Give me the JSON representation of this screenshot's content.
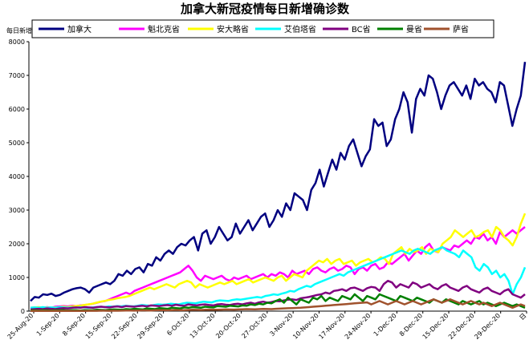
{
  "chart_data": {
    "type": "line",
    "title": "加拿大新冠疫情每日新增确诊数",
    "ylabel": "每日新增确诊",
    "ylim": [
      0,
      8000
    ],
    "yticks": [
      0,
      1000,
      2000,
      3000,
      4000,
      5000,
      6000,
      7000,
      8000
    ],
    "x_tick_labels": [
      "25-Aug-20",
      "1-Sep-20",
      "8-Sep-20",
      "15-Sep-20",
      "22-Sep-20",
      "29-Sep-20",
      "6-Oct-20",
      "13-Oct-20",
      "20-Oct-20",
      "27-Oct-20",
      "3-Nov-20",
      "10-Nov-20",
      "17-Nov-20",
      "24-Nov-20",
      "1-Dec-20",
      "8-Dec-20",
      "15-Dec-20",
      "22-Dec-20",
      "29-Dec-20",
      "日"
    ],
    "legend_position": "top",
    "grid": false,
    "series": [
      {
        "name": "加拿大",
        "color": "#000080",
        "values": [
          300,
          420,
          400,
          500,
          480,
          520,
          450,
          480,
          550,
          600,
          650,
          680,
          700,
          650,
          550,
          700,
          750,
          800,
          850,
          800,
          900,
          1100,
          1050,
          1200,
          1100,
          1250,
          1300,
          1150,
          1400,
          1350,
          1600,
          1500,
          1700,
          1800,
          1700,
          1900,
          2000,
          1950,
          2100,
          2200,
          1800,
          2300,
          2400,
          2000,
          2200,
          2500,
          2300,
          2100,
          2200,
          2600,
          2300,
          2500,
          2700,
          2400,
          2600,
          2800,
          2900,
          2500,
          2700,
          3000,
          2800,
          3200,
          3000,
          3500,
          3400,
          3300,
          3000,
          3600,
          3800,
          4200,
          3700,
          4100,
          4500,
          4200,
          4700,
          4500,
          4900,
          5100,
          4700,
          4300,
          4600,
          4800,
          5700,
          5500,
          5600,
          4900,
          5100,
          5700,
          6000,
          6500,
          6200,
          5300,
          6300,
          6600,
          6400,
          7000,
          6900,
          6500,
          6000,
          6400,
          6700,
          6800,
          6600,
          6400,
          6700,
          6300,
          6900,
          6700,
          6800,
          6600,
          6500,
          6200,
          6800,
          6700,
          6100,
          5500,
          6000,
          6400,
          7400
        ]
      },
      {
        "name": "魁北克省",
        "color": "#ff00ff",
        "values": [
          100,
          90,
          110,
          100,
          120,
          100,
          130,
          140,
          150,
          140,
          160,
          150,
          170,
          180,
          200,
          220,
          250,
          280,
          300,
          350,
          400,
          450,
          500,
          550,
          500,
          600,
          650,
          700,
          750,
          800,
          850,
          900,
          950,
          1000,
          1050,
          1100,
          1150,
          1250,
          1350,
          1200,
          1000,
          900,
          1050,
          1000,
          950,
          1000,
          1050,
          950,
          900,
          1000,
          950,
          1000,
          1050,
          950,
          1000,
          1050,
          1100,
          1000,
          1100,
          1050,
          1150,
          1100,
          1000,
          1200,
          1100,
          1150,
          1200,
          1100,
          1250,
          1300,
          1200,
          1150,
          1250,
          1300,
          1200,
          1250,
          1350,
          1300,
          1100,
          1250,
          1300,
          1200,
          1350,
          1400,
          1250,
          1300,
          1450,
          1400,
          1500,
          1600,
          1700,
          1500,
          1650,
          1800,
          1700,
          1900,
          2000,
          1800,
          1750,
          1900,
          1850,
          1800,
          1950,
          1900,
          2000,
          2100,
          2000,
          2200,
          2150,
          2300,
          2100,
          2200,
          2000,
          2350,
          2200,
          2300,
          2400,
          2300,
          2400,
          2500
        ]
      },
      {
        "name": "安大略省",
        "color": "#ffff00",
        "values": [
          100,
          110,
          120,
          100,
          110,
          100,
          110,
          120,
          130,
          120,
          140,
          150,
          160,
          180,
          200,
          220,
          250,
          280,
          300,
          330,
          350,
          380,
          400,
          420,
          450,
          500,
          550,
          600,
          650,
          700,
          650,
          700,
          750,
          800,
          750,
          700,
          800,
          850,
          900,
          850,
          700,
          800,
          750,
          700,
          750,
          800,
          850,
          800,
          850,
          900,
          800,
          850,
          900,
          950,
          850,
          900,
          950,
          1000,
          950,
          900,
          1000,
          1050,
          900,
          1000,
          1100,
          1050,
          1000,
          1200,
          1300,
          1400,
          1500,
          1450,
          1550,
          1400,
          1500,
          1550,
          1400,
          1450,
          1500,
          1350,
          1450,
          1500,
          1550,
          1450,
          1500,
          1600,
          1550,
          1400,
          1700,
          1800,
          1900,
          1700,
          1850,
          1750,
          1800,
          1900,
          1700,
          1850,
          1800,
          1750,
          2000,
          2100,
          2200,
          2400,
          2300,
          2200,
          2300,
          2400,
          2200,
          2250,
          2350,
          2400,
          2200,
          2500,
          2400,
          2200,
          2100,
          1950,
          2200,
          2600,
          2900
        ]
      },
      {
        "name": "艾伯塔省",
        "color": "#00ffff",
        "values": [
          100,
          110,
          100,
          120,
          100,
          110,
          100,
          120,
          110,
          100,
          110,
          100,
          120,
          110,
          100,
          110,
          120,
          130,
          120,
          140,
          130,
          150,
          140,
          160,
          150,
          140,
          160,
          180,
          170,
          160,
          180,
          200,
          190,
          200,
          220,
          210,
          200,
          230,
          250,
          240,
          230,
          260,
          280,
          270,
          260,
          300,
          320,
          310,
          300,
          330,
          350,
          340,
          360,
          380,
          400,
          420,
          400,
          450,
          470,
          500,
          480,
          520,
          550,
          600,
          580,
          650,
          700,
          750,
          720,
          800,
          850,
          900,
          950,
          1000,
          1050,
          1100,
          1050,
          1150,
          1200,
          1250,
          1300,
          1350,
          1400,
          1450,
          1500,
          1550,
          1600,
          1650,
          1700,
          1750,
          1800,
          1750,
          1700,
          1800,
          1850,
          1800,
          1750,
          1700,
          1800,
          1850,
          1900,
          1800,
          1750,
          1700,
          1600,
          1800,
          1700,
          1600,
          1300,
          1200,
          1400,
          1300,
          1100,
          1200,
          1000,
          1100,
          900,
          500,
          800,
          1000,
          1300
        ]
      },
      {
        "name": "BC省",
        "color": "#800080",
        "values": [
          50,
          60,
          70,
          60,
          80,
          70,
          60,
          80,
          90,
          80,
          100,
          110,
          100,
          120,
          110,
          100,
          120,
          130,
          120,
          110,
          130,
          140,
          120,
          150,
          140,
          130,
          150,
          160,
          140,
          170,
          160,
          150,
          170,
          180,
          160,
          190,
          170,
          160,
          200,
          180,
          170,
          190,
          200,
          180,
          170,
          200,
          210,
          190,
          180,
          210,
          220,
          200,
          230,
          250,
          220,
          260,
          280,
          250,
          270,
          300,
          290,
          320,
          340,
          350,
          330,
          380,
          400,
          420,
          450,
          480,
          500,
          550,
          520,
          600,
          620,
          650,
          600,
          680,
          700,
          650,
          600,
          680,
          720,
          700,
          600,
          800,
          900,
          850,
          700,
          800,
          750,
          700,
          850,
          800,
          700,
          750,
          800,
          700,
          650,
          750,
          800,
          700,
          650,
          600,
          700,
          750,
          650,
          600,
          550,
          650,
          700,
          600,
          550,
          500,
          600,
          650,
          500,
          450,
          400,
          500
        ]
      },
      {
        "name": "曼省",
        "color": "#008000",
        "values": [
          20,
          30,
          20,
          30,
          25,
          20,
          30,
          25,
          30,
          20,
          30,
          25,
          20,
          30,
          25,
          30,
          40,
          35,
          30,
          40,
          50,
          45,
          40,
          60,
          50,
          70,
          60,
          50,
          80,
          70,
          60,
          90,
          80,
          70,
          100,
          90,
          80,
          110,
          100,
          120,
          110,
          100,
          130,
          120,
          110,
          150,
          140,
          130,
          160,
          150,
          140,
          170,
          160,
          200,
          180,
          220,
          200,
          250,
          230,
          300,
          350,
          250,
          400,
          300,
          200,
          350,
          300,
          250,
          400,
          350,
          450,
          300,
          400,
          350,
          300,
          450,
          400,
          350,
          500,
          400,
          300,
          450,
          400,
          350,
          500,
          450,
          400,
          350,
          300,
          450,
          400,
          350,
          300,
          400,
          350,
          300,
          250,
          350,
          300,
          250,
          350,
          300,
          250,
          200,
          300,
          250,
          200,
          250,
          300,
          200,
          250,
          200,
          150,
          200,
          250,
          200,
          150,
          200,
          150,
          100
        ]
      },
      {
        "name": "萨省",
        "color": "#a0522d",
        "values": [
          5,
          10,
          5,
          10,
          8,
          5,
          10,
          8,
          5,
          10,
          8,
          5,
          10,
          8,
          10,
          12,
          10,
          15,
          12,
          10,
          15,
          12,
          15,
          20,
          18,
          15,
          20,
          25,
          22,
          20,
          25,
          30,
          28,
          25,
          30,
          35,
          32,
          30,
          35,
          40,
          38,
          35,
          40,
          45,
          42,
          40,
          45,
          50,
          48,
          45,
          50,
          55,
          60,
          58,
          55,
          60,
          65,
          62,
          60,
          70,
          75,
          80,
          85,
          90,
          95,
          100,
          110,
          120,
          130,
          140,
          150,
          160,
          170,
          180,
          190,
          200,
          210,
          220,
          230,
          240,
          250,
          260,
          200,
          250,
          300,
          250,
          200,
          250,
          300,
          250,
          200,
          250,
          300,
          250,
          200,
          250,
          300,
          350,
          300,
          250,
          300,
          350,
          300,
          250,
          200,
          250,
          300,
          250,
          200,
          250,
          200,
          150,
          200,
          250,
          200,
          150,
          100,
          150,
          200,
          150
        ]
      }
    ]
  }
}
